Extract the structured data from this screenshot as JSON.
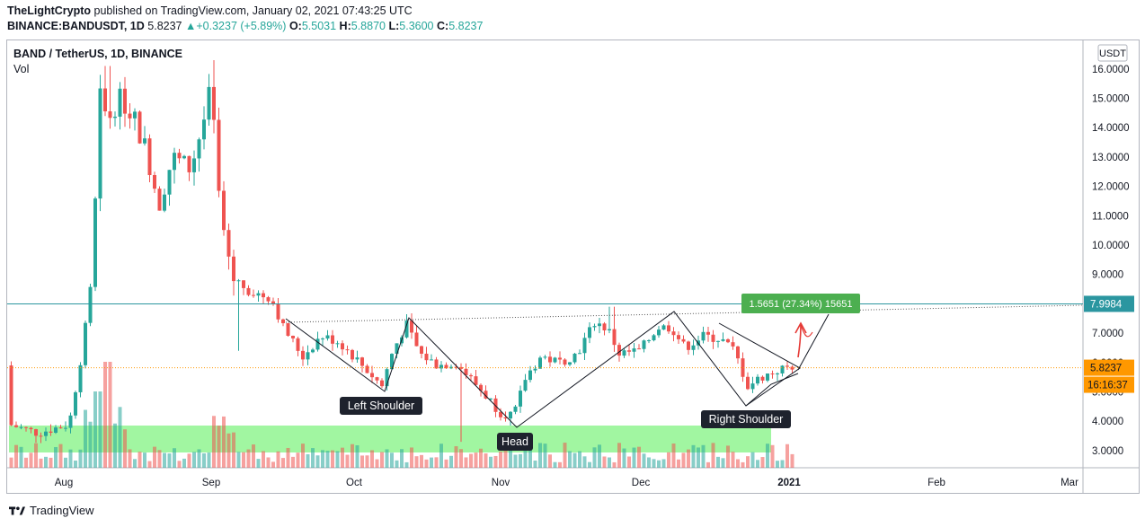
{
  "header": {
    "author": "TheLightCrypto",
    "published": "published on TradingView.com, January 02, 2021 07:43:25 UTC",
    "symbol": "BINANCE:BANDUSDT, 1D",
    "last": "5.8237",
    "change": "+0.3237 (+5.89%)",
    "o_label": "O:",
    "o": "5.5031",
    "h_label": "H:",
    "h": "5.8870",
    "l_label": "L:",
    "l": "5.3600",
    "c_label": "C:",
    "c": "5.8237"
  },
  "legend": {
    "title": "BAND / TetherUS, 1D, BINANCE",
    "vol": "Vol"
  },
  "chart_data": {
    "type": "candlestick",
    "currency_label": "USDT",
    "ylim": [
      2.3,
      16.6
    ],
    "price_ticks": [
      "16.0000",
      "15.0000",
      "14.0000",
      "13.0000",
      "12.0000",
      "11.0000",
      "10.0000",
      "9.0000",
      "8.0000",
      "7.0000",
      "6.0000",
      "5.0000",
      "4.0000",
      "3.0000"
    ],
    "x_ticks": [
      "Aug",
      "Sep",
      "Oct",
      "Nov",
      "Dec",
      "2021",
      "Feb",
      "Mar"
    ],
    "markers": {
      "resistance": "7.9984",
      "current": "5.8237",
      "countdown": "16:16:37"
    },
    "measure_label": "1.5651 (27.34%) 15651",
    "annotations": [
      "Left Shoulder",
      "Head",
      "Right Shoulder"
    ],
    "colors": {
      "up": "#26a69a",
      "down": "#ef5350",
      "zone": "#9cf59c",
      "measure": "#4caf50",
      "resistance": "#2b96a0",
      "current": "#ff9800",
      "arrow": "#e53935"
    }
  },
  "footer": {
    "brand": "TradingView"
  }
}
